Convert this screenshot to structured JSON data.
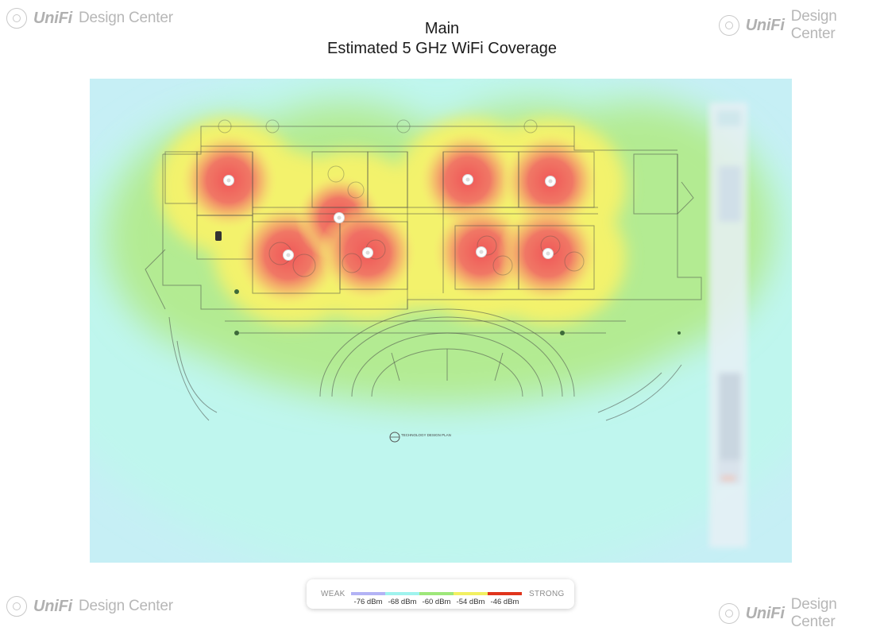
{
  "brand": {
    "unifi_text": "UniFi",
    "product_text": "Design Center"
  },
  "header": {
    "title": "Main",
    "subtitle": "Estimated 5 GHz WiFi Coverage"
  },
  "plan": {
    "label": "TECHNOLOGY DESIGN PLAN",
    "access_point_count": 8
  },
  "legend": {
    "weak_label": "WEAK",
    "strong_label": "STRONG",
    "stops": [
      {
        "label": "-76 dBm",
        "color": "#b3b3f5"
      },
      {
        "label": "-68 dBm",
        "color": "#9ff3ee"
      },
      {
        "label": "-60 dBm",
        "color": "#9ee77a"
      },
      {
        "label": "-54 dBm",
        "color": "#f2f061"
      },
      {
        "label": "-46 dBm",
        "color": "#e0341c"
      }
    ]
  },
  "colors": {
    "strong": "#ef5a5f",
    "medium_strong": "#f6d36a",
    "medium": "#f4f470",
    "fair": "#b8ec86",
    "weak": "#b9f5ea",
    "very_weak": "#c9ddf7"
  }
}
